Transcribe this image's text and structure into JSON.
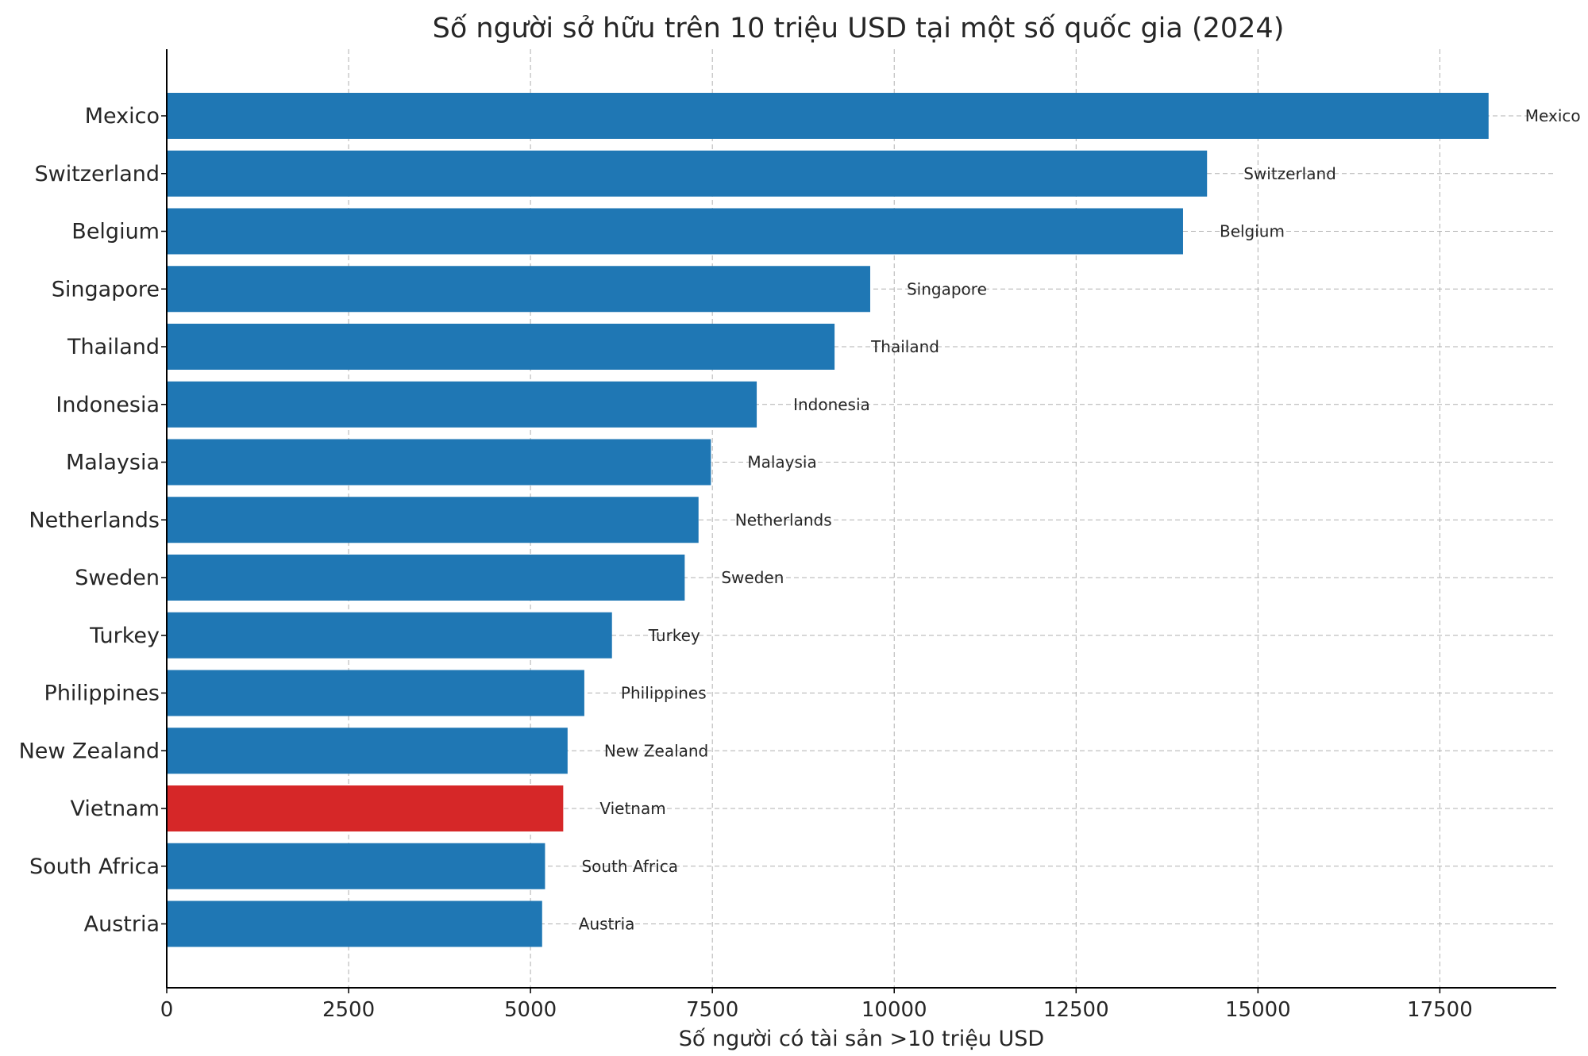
{
  "chart_data": {
    "type": "bar",
    "orientation": "horizontal",
    "title": "Số người sở hữu trên 10 triệu USD tại một số quốc gia (2024)",
    "xlabel": "Số người có tài sản >10 triệu USD",
    "ylabel": "",
    "xlim": [
      0,
      19100
    ],
    "xticks": [
      0,
      2500,
      5000,
      7500,
      10000,
      12500,
      15000,
      17500
    ],
    "grid": true,
    "categories": [
      "Mexico",
      "Switzerland",
      "Belgium",
      "Singapore",
      "Thailand",
      "Indonesia",
      "Malaysia",
      "Netherlands",
      "Sweden",
      "Turkey",
      "Philippines",
      "New Zealand",
      "Vietnam",
      "South Africa",
      "Austria"
    ],
    "values": [
      18170,
      14300,
      13970,
      9670,
      9180,
      8110,
      7480,
      7310,
      7120,
      6120,
      5740,
      5510,
      5450,
      5200,
      5160
    ],
    "colors": [
      "#1f77b4",
      "#1f77b4",
      "#1f77b4",
      "#1f77b4",
      "#1f77b4",
      "#1f77b4",
      "#1f77b4",
      "#1f77b4",
      "#1f77b4",
      "#1f77b4",
      "#1f77b4",
      "#1f77b4",
      "#d62728",
      "#1f77b4",
      "#1f77b4"
    ],
    "data_labels": [
      "Mexico",
      "Switzerland",
      "Belgium",
      "Singapore",
      "Thailand",
      "Indonesia",
      "Malaysia",
      "Netherlands",
      "Sweden",
      "Turkey",
      "Philippines",
      "New Zealand",
      "Vietnam",
      "South Africa",
      "Austria"
    ],
    "highlight": "Vietnam",
    "default_color": "#1f77b4",
    "highlight_color": "#d62728"
  }
}
